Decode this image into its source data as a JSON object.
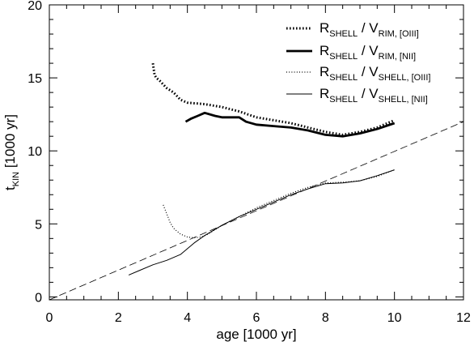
{
  "chart_data": {
    "type": "line",
    "title": "",
    "xlabel": "age [1000 yr]",
    "ylabel": "t",
    "ylabel_sub": "KIN",
    "ylabel_rest": " [1000 yr]",
    "xlim": [
      0,
      12
    ],
    "ylim": [
      -0.2,
      20
    ],
    "xticks": [
      0,
      2,
      4,
      6,
      8,
      10,
      12
    ],
    "yticks": [
      0,
      5,
      10,
      15,
      20
    ],
    "grid": false,
    "legend_position": "top-right",
    "series": [
      {
        "name": "R_SHELL / V_RIM,[OIII]",
        "legend": {
          "main1": "R",
          "sub1": "SHELL",
          "mid": " / V",
          "sub2": "RIM, [OIII]"
        },
        "style": "dotted-thick",
        "color": "#000000",
        "x": [
          3.0,
          3.05,
          3.1,
          3.2,
          3.4,
          3.6,
          3.8,
          4.0,
          4.5,
          5.0,
          5.5,
          6.0,
          6.5,
          7.0,
          7.5,
          8.0,
          8.5,
          9.0,
          9.5,
          10.0
        ],
        "y": [
          16.0,
          15.2,
          15.0,
          14.8,
          14.3,
          14.0,
          13.5,
          13.3,
          13.2,
          13.0,
          12.7,
          12.3,
          12.1,
          11.9,
          11.6,
          11.3,
          11.1,
          11.3,
          11.6,
          12.1
        ]
      },
      {
        "name": "R_SHELL / V_RIM,[NII]",
        "legend": {
          "main1": "R",
          "sub1": "SHELL",
          "mid": " / V",
          "sub2": "RIM, [NII]"
        },
        "style": "solid-thick",
        "color": "#000000",
        "x": [
          3.95,
          4.1,
          4.3,
          4.5,
          4.8,
          5.0,
          5.3,
          5.5,
          5.7,
          6.0,
          6.5,
          7.0,
          7.5,
          8.0,
          8.5,
          9.0,
          9.5,
          10.0
        ],
        "y": [
          12.0,
          12.2,
          12.4,
          12.6,
          12.4,
          12.3,
          12.3,
          12.3,
          12.0,
          11.8,
          11.7,
          11.6,
          11.4,
          11.1,
          11.0,
          11.2,
          11.5,
          11.9
        ]
      },
      {
        "name": "R_SHELL / V_SHELL,[OIII]",
        "legend": {
          "main1": "R",
          "sub1": "SHELL",
          "mid": " / V",
          "sub2": "SHELL, [OIII]"
        },
        "style": "dotted-thin",
        "color": "#000000",
        "x": [
          3.3,
          3.4,
          3.5,
          3.6,
          3.8,
          4.0,
          4.2,
          4.4,
          4.6,
          5.0,
          5.5,
          6.0,
          6.5,
          7.0,
          7.5,
          8.0,
          8.5,
          9.0,
          9.5,
          10.0
        ],
        "y": [
          6.3,
          5.7,
          5.1,
          4.7,
          4.3,
          4.1,
          4.05,
          4.1,
          4.3,
          4.9,
          5.5,
          6.1,
          6.6,
          7.1,
          7.5,
          7.8,
          7.85,
          7.95,
          8.25,
          8.7
        ]
      },
      {
        "name": "R_SHELL / V_SHELL,[NII]",
        "legend": {
          "main1": "R",
          "sub1": "SHELL",
          "mid": " / V",
          "sub2": "SHELL, [NII]"
        },
        "style": "solid-thin",
        "color": "#000000",
        "x": [
          2.3,
          2.6,
          3.0,
          3.4,
          3.8,
          4.0,
          4.2,
          4.5,
          5.0,
          5.5,
          6.0,
          6.5,
          7.0,
          7.5,
          8.0,
          8.5,
          9.0,
          9.5,
          10.0
        ],
        "y": [
          1.5,
          1.8,
          2.2,
          2.5,
          2.9,
          3.3,
          3.7,
          4.2,
          4.9,
          5.5,
          6.0,
          6.5,
          7.0,
          7.4,
          7.75,
          7.8,
          7.95,
          8.3,
          8.7
        ]
      },
      {
        "name": "reference line",
        "style": "dashed",
        "color": "#000000",
        "x": [
          0,
          12
        ],
        "y": [
          -0.2,
          12.0
        ]
      }
    ]
  }
}
